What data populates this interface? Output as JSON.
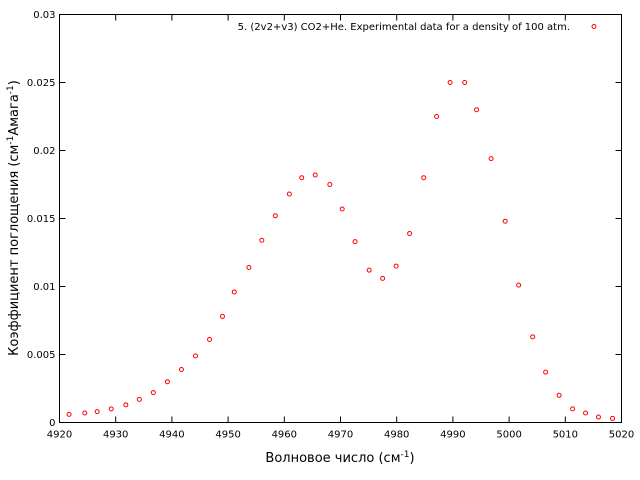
{
  "chart_data": {
    "type": "scatter",
    "title": "",
    "xlabel_main": "Волновое число (см",
    "xlabel_sup": "-1",
    "xlabel_end": ")",
    "ylabel_main": "Коэффициент поглощения (см",
    "ylabel_sup1": "-1",
    "ylabel_mid": "Амага",
    "ylabel_sup2": "-1",
    "ylabel_end": ")",
    "xlim": [
      4920,
      5020
    ],
    "ylim": [
      0,
      0.03
    ],
    "xticks": [
      "4920",
      "4930",
      "4940",
      "4950",
      "4960",
      "4970",
      "4980",
      "4990",
      "5000",
      "5010",
      "5020"
    ],
    "yticks": [
      "0",
      "0.005",
      "0.01",
      "0.015",
      "0.02",
      "0.025",
      "0.03"
    ],
    "grid": false,
    "legend_position": "top-right",
    "series": [
      {
        "name": "5. (2v2+v3) CO2+He. Experimental data for a density of 100 atm.",
        "color": "#ff0000",
        "marker": "open-circle",
        "x": [
          4921.7,
          4924.5,
          4926.7,
          4929.2,
          4931.8,
          4934.2,
          4936.7,
          4939.2,
          4941.7,
          4944.2,
          4946.7,
          4949.0,
          4951.1,
          4953.7,
          4956.0,
          4958.4,
          4960.9,
          4963.1,
          4965.5,
          4968.1,
          4970.3,
          4972.6,
          4975.1,
          4977.5,
          4979.9,
          4982.3,
          4984.8,
          4987.1,
          4989.5,
          4992.1,
          4994.2,
          4996.8,
          4999.3,
          5001.7,
          5004.2,
          5006.5,
          5008.9,
          5011.3,
          5013.6,
          5015.9,
          5018.4
        ],
        "y": [
          0.0006,
          0.0007,
          0.0008,
          0.001,
          0.0013,
          0.0017,
          0.0022,
          0.003,
          0.0039,
          0.0049,
          0.0061,
          0.0078,
          0.0096,
          0.0114,
          0.0134,
          0.0152,
          0.0168,
          0.018,
          0.0182,
          0.0175,
          0.0157,
          0.0133,
          0.0112,
          0.0106,
          0.0115,
          0.0139,
          0.018,
          0.0225,
          0.025,
          0.025,
          0.023,
          0.0194,
          0.0148,
          0.0101,
          0.0063,
          0.0037,
          0.002,
          0.001,
          0.0007,
          0.0004,
          0.0003
        ]
      }
    ]
  }
}
